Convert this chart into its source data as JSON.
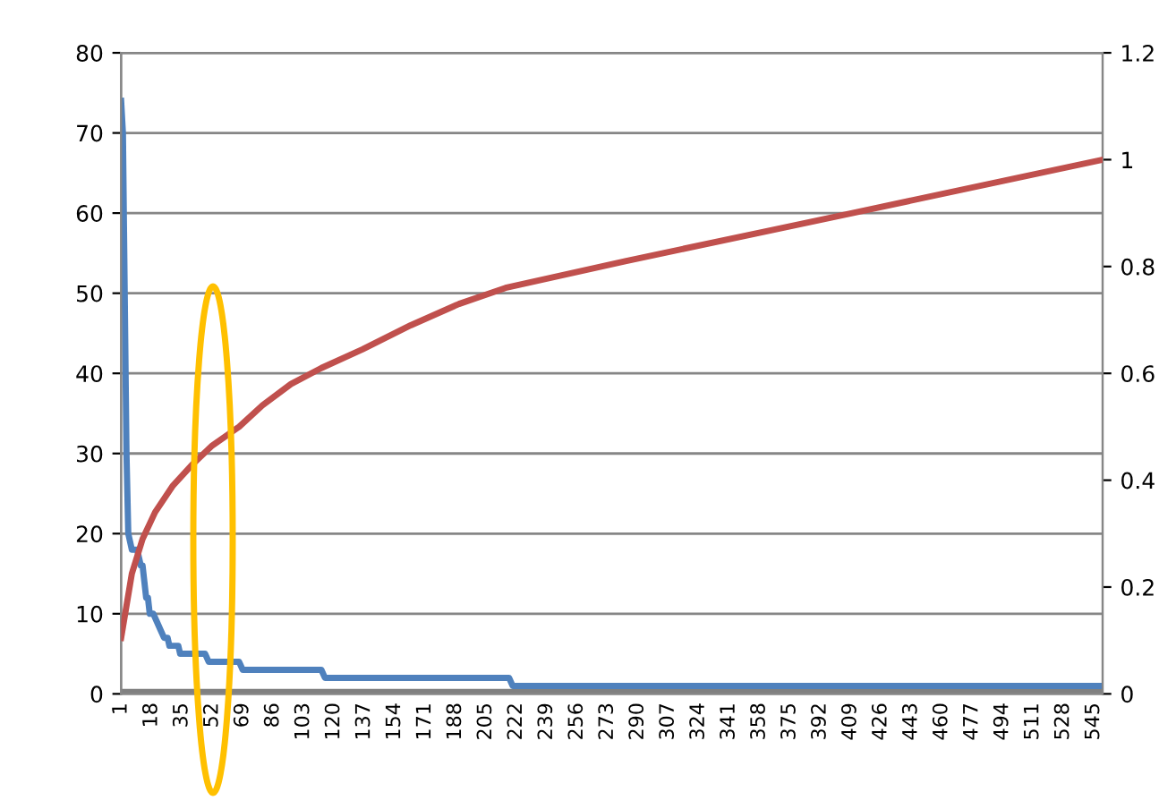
{
  "chart_data": {
    "type": "line",
    "series": [
      {
        "color": "#4f81bd",
        "x": [
          1,
          2,
          3,
          4,
          5,
          7,
          10,
          11,
          12,
          13,
          15,
          16,
          17,
          19,
          21,
          23,
          25,
          27,
          28,
          33,
          34,
          48,
          50,
          67,
          69,
          113,
          115,
          218,
          220,
          550
        ],
        "values": [
          74,
          70,
          50,
          30,
          20,
          18,
          18,
          17,
          16,
          16,
          12,
          12,
          10,
          10,
          9,
          8,
          7,
          7,
          6,
          6,
          5,
          5,
          4,
          4,
          3,
          3,
          2,
          2,
          1,
          1
        ]
      },
      {
        "color": "#c0504d",
        "axis": "y2",
        "x": [
          1,
          7,
          13,
          20,
          30,
          41,
          52,
          67,
          80,
          96,
          113,
          136,
          163,
          190,
          216,
          283,
          410,
          550
        ],
        "values": [
          0.105,
          0.225,
          0.29,
          0.34,
          0.39,
          0.43,
          0.465,
          0.5,
          0.54,
          0.58,
          0.61,
          0.645,
          0.69,
          0.73,
          0.76,
          0.81,
          0.9,
          1.0
        ]
      }
    ],
    "xlim": [
      1,
      550
    ],
    "xticks": [
      1,
      18,
      35,
      52,
      69,
      86,
      103,
      120,
      137,
      154,
      171,
      188,
      205,
      222,
      239,
      256,
      273,
      290,
      307,
      324,
      341,
      358,
      375,
      392,
      409,
      426,
      443,
      460,
      477,
      494,
      511,
      528,
      545
    ],
    "ylim": [
      0,
      80
    ],
    "yticks": [
      0,
      10,
      20,
      30,
      40,
      50,
      60,
      70,
      80
    ],
    "y2lim": [
      0,
      1.2
    ],
    "y2ticks": [
      0,
      0.2,
      0.4,
      0.6,
      0.8,
      1,
      1.2
    ],
    "grid": "y",
    "marker": "none",
    "line_style": "solid",
    "ref_lines": [
      {
        "axis": "y",
        "value": 0,
        "color": "#808080"
      }
    ]
  }
}
